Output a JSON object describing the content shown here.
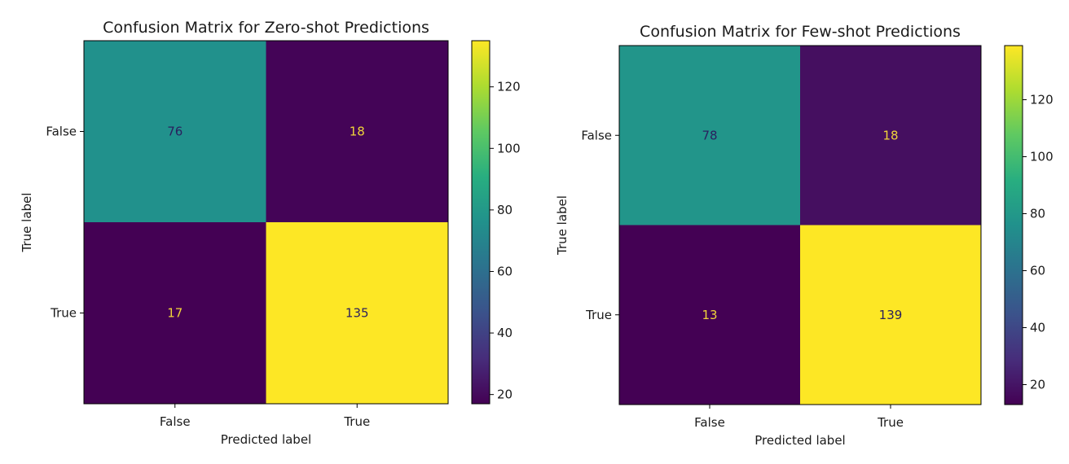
{
  "chart_data": [
    {
      "type": "heatmap",
      "title": "Confusion Matrix for Zero-shot Predictions",
      "xlabel": "Predicted label",
      "ylabel": "True label",
      "x_categories": [
        "False",
        "True"
      ],
      "y_categories": [
        "False",
        "True"
      ],
      "values": [
        [
          76,
          18
        ],
        [
          17,
          135
        ]
      ],
      "colormap": "viridis",
      "colorbar": {
        "range": [
          17,
          135
        ],
        "ticks": [
          20,
          40,
          60,
          80,
          100,
          120
        ]
      }
    },
    {
      "type": "heatmap",
      "title": "Confusion Matrix for Few-shot Predictions",
      "xlabel": "Predicted label",
      "ylabel": "True label",
      "x_categories": [
        "False",
        "True"
      ],
      "y_categories": [
        "False",
        "True"
      ],
      "values": [
        [
          78,
          18
        ],
        [
          13,
          139
        ]
      ],
      "colormap": "viridis",
      "colorbar": {
        "range": [
          13,
          139
        ],
        "ticks": [
          20,
          40,
          60,
          80,
          100,
          120
        ]
      }
    }
  ]
}
